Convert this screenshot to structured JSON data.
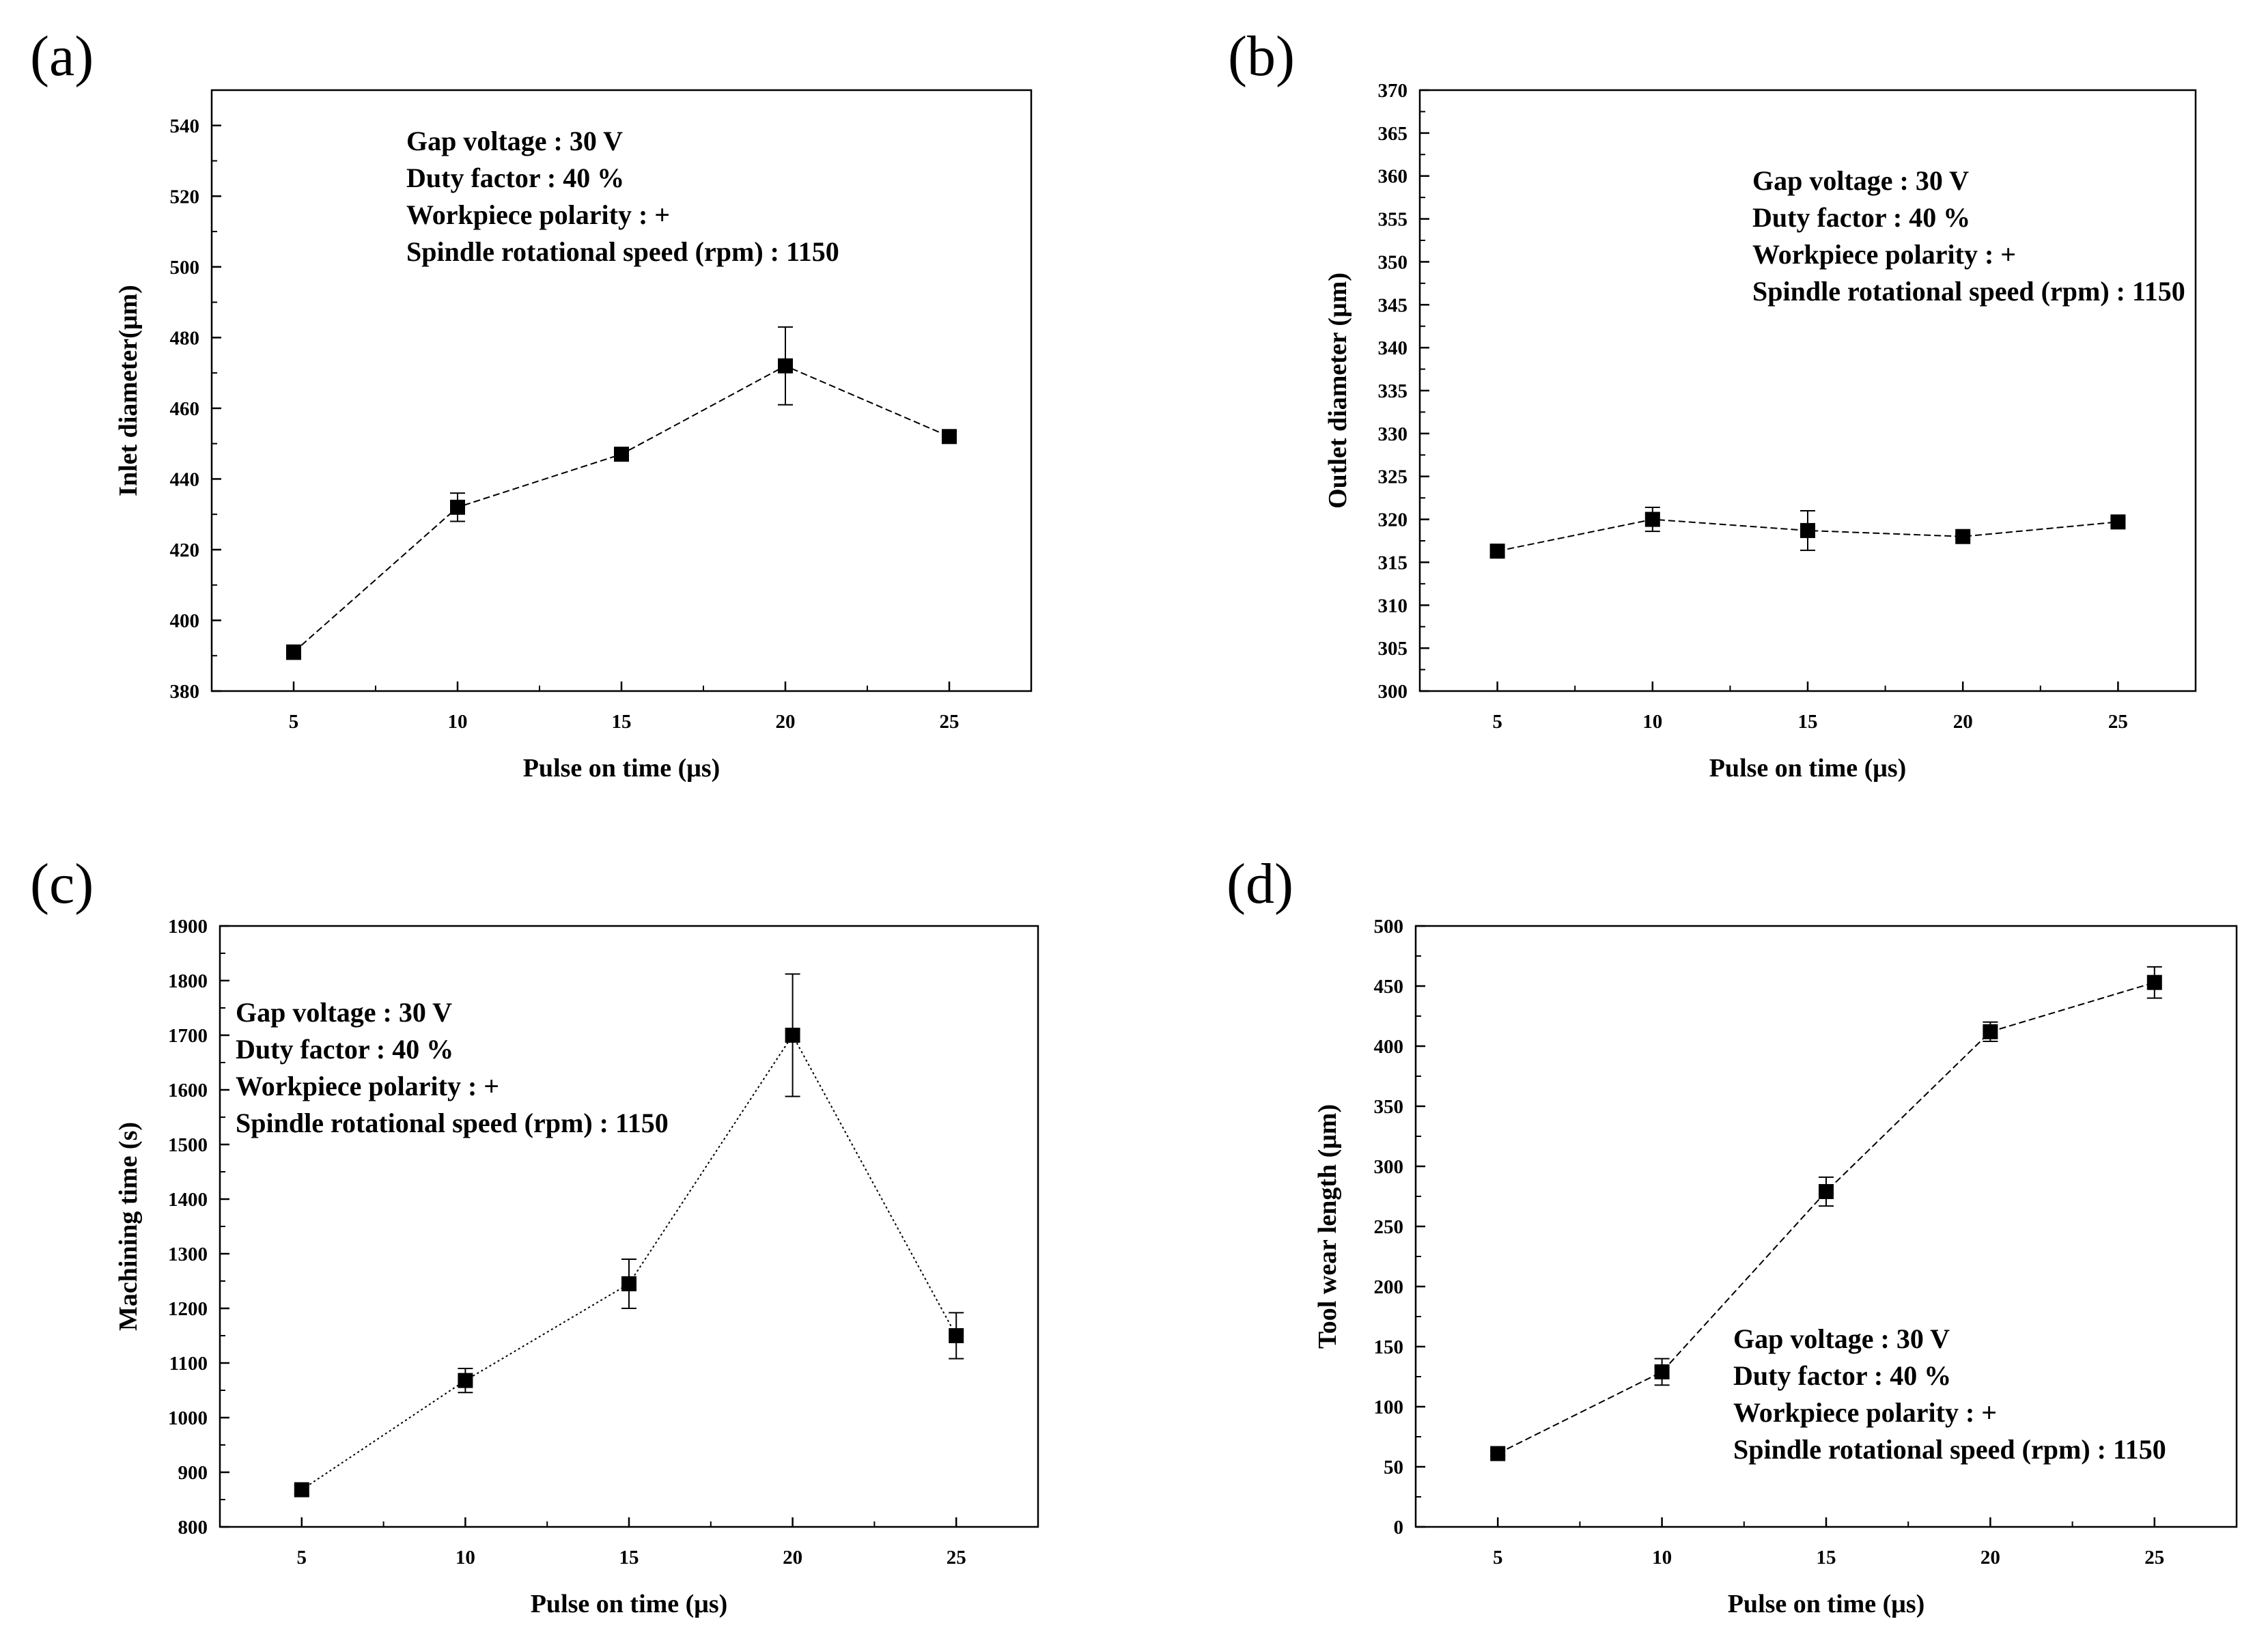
{
  "chart_data": [
    {
      "panel": "(a)",
      "type": "line",
      "xlabel": "Pulse on time (μs)",
      "ylabel": "Inlet diameter(μm)",
      "x": [
        5,
        10,
        15,
        20,
        25
      ],
      "values": [
        391,
        432,
        447,
        472,
        452
      ],
      "errors": [
        2,
        4,
        1,
        11,
        1
      ],
      "xlim": [
        2.5,
        27.5
      ],
      "ylim": [
        380,
        550
      ],
      "xticks": [
        5,
        10,
        15,
        20,
        25
      ],
      "yticks": [
        380,
        400,
        420,
        440,
        460,
        480,
        500,
        520,
        540
      ],
      "line_style": "dash",
      "annotation": [
        "Gap voltage : 30 V",
        "Duty factor : 40 %",
        "Workpiece polarity : +",
        "Spindle rotational speed (rpm) : 1150"
      ],
      "annotation_position": "top-center"
    },
    {
      "panel": "(b)",
      "type": "line",
      "xlabel": "Pulse on time (μs)",
      "ylabel": "Outlet diameter (μm)",
      "x": [
        5,
        10,
        15,
        20,
        25
      ],
      "values": [
        316.3,
        320.0,
        318.7,
        318.0,
        319.7
      ],
      "errors": [
        0.5,
        1.4,
        2.3,
        0.4,
        0.4
      ],
      "xlim": [
        2.5,
        27.5
      ],
      "ylim": [
        300,
        370
      ],
      "xticks": [
        5,
        10,
        15,
        20,
        25
      ],
      "yticks": [
        300,
        305,
        310,
        315,
        320,
        325,
        330,
        335,
        340,
        345,
        350,
        355,
        360,
        365,
        370
      ],
      "line_style": "dash",
      "annotation": [
        "Gap voltage : 30 V",
        "Duty factor : 40 %",
        "Workpiece polarity : +",
        "Spindle rotational speed (rpm) : 1150"
      ],
      "annotation_position": "top-right"
    },
    {
      "panel": "(c)",
      "type": "line",
      "xlabel": "Pulse on time (μs)",
      "ylabel": "Machining time (s)",
      "x": [
        5,
        10,
        15,
        20,
        25
      ],
      "values": [
        868,
        1068,
        1245,
        1700,
        1150
      ],
      "errors": [
        8,
        22,
        45,
        112,
        42
      ],
      "xlim": [
        2.5,
        27.5
      ],
      "ylim": [
        800,
        1900
      ],
      "xticks": [
        5,
        10,
        15,
        20,
        25
      ],
      "yticks": [
        800,
        900,
        1000,
        1100,
        1200,
        1300,
        1400,
        1500,
        1600,
        1700,
        1800,
        1900
      ],
      "line_style": "dot",
      "annotation": [
        "Gap voltage : 30 V",
        "Duty factor : 40 %",
        "Workpiece polarity : +",
        "Spindle rotational speed (rpm) : 1150"
      ],
      "annotation_position": "top-left"
    },
    {
      "panel": "(d)",
      "type": "line",
      "xlabel": "Pulse on time (μs)",
      "ylabel": "Tool wear length (μm)",
      "x": [
        5,
        10,
        15,
        20,
        25
      ],
      "values": [
        61,
        129,
        279,
        412,
        453
      ],
      "errors": [
        2,
        11,
        12,
        8,
        13
      ],
      "xlim": [
        2.5,
        27.5
      ],
      "ylim": [
        0,
        500
      ],
      "xticks": [
        5,
        10,
        15,
        20,
        25
      ],
      "yticks": [
        0,
        50,
        100,
        150,
        200,
        250,
        300,
        350,
        400,
        450,
        500
      ],
      "line_style": "dash",
      "annotation": [
        "Gap voltage : 30 V",
        "Duty factor : 40 %",
        "Workpiece polarity : +",
        "Spindle rotational speed (rpm) : 1150"
      ],
      "annotation_position": "bottom-right"
    }
  ]
}
